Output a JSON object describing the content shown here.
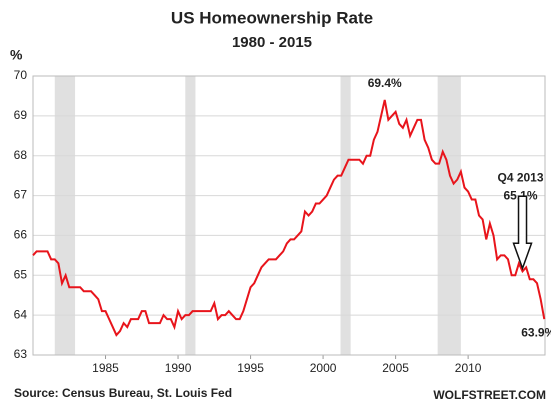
{
  "chart_data": {
    "type": "line",
    "title": "US Homeownership Rate",
    "subtitle": "1980 - 2015",
    "y_label": "%",
    "source": "Source: Census Bureau, St. Louis Fed",
    "credit": "WOLFSTREET.COM",
    "xlim": [
      1980,
      2015.3
    ],
    "xticks": [
      1985,
      1990,
      1995,
      2000,
      2005,
      2010
    ],
    "ylim": [
      63,
      70
    ],
    "yticks": [
      63,
      64,
      65,
      66,
      67,
      68,
      69,
      70
    ],
    "grid": true,
    "shaded_periods": [
      [
        1981.5,
        1982.9
      ],
      [
        1990.5,
        1991.2
      ],
      [
        2001.2,
        2001.9
      ],
      [
        2007.9,
        2009.5
      ]
    ],
    "x": [
      1980,
      1980.25,
      1980.5,
      1980.75,
      1981,
      1981.25,
      1981.5,
      1981.75,
      1982,
      1982.25,
      1982.5,
      1982.75,
      1983,
      1983.25,
      1983.5,
      1983.75,
      1984,
      1984.25,
      1984.5,
      1984.75,
      1985,
      1985.25,
      1985.5,
      1985.75,
      1986,
      1986.25,
      1986.5,
      1986.75,
      1987,
      1987.25,
      1987.5,
      1987.75,
      1988,
      1988.25,
      1988.5,
      1988.75,
      1989,
      1989.25,
      1989.5,
      1989.75,
      1990,
      1990.25,
      1990.5,
      1990.75,
      1991,
      1991.25,
      1991.5,
      1991.75,
      1992,
      1992.25,
      1992.5,
      1992.75,
      1993,
      1993.25,
      1993.5,
      1993.75,
      1994,
      1994.25,
      1994.5,
      1994.75,
      1995,
      1995.25,
      1995.5,
      1995.75,
      1996,
      1996.25,
      1996.5,
      1996.75,
      1997,
      1997.25,
      1997.5,
      1997.75,
      1998,
      1998.25,
      1998.5,
      1998.75,
      1999,
      1999.25,
      1999.5,
      1999.75,
      2000,
      2000.25,
      2000.5,
      2000.75,
      2001,
      2001.25,
      2001.5,
      2001.75,
      2002,
      2002.25,
      2002.5,
      2002.75,
      2003,
      2003.25,
      2003.5,
      2003.75,
      2004,
      2004.25,
      2004.5,
      2004.75,
      2005,
      2005.25,
      2005.5,
      2005.75,
      2006,
      2006.25,
      2006.5,
      2006.75,
      2007,
      2007.25,
      2007.5,
      2007.75,
      2008,
      2008.25,
      2008.5,
      2008.75,
      2009,
      2009.25,
      2009.5,
      2009.75,
      2010,
      2010.25,
      2010.5,
      2010.75,
      2011,
      2011.25,
      2011.5,
      2011.75,
      2012,
      2012.25,
      2012.5,
      2012.75,
      2013,
      2013.25,
      2013.5,
      2013.75,
      2014,
      2014.25,
      2014.5,
      2014.75,
      2015,
      2015.25
    ],
    "series": [
      {
        "name": "Homeownership rate",
        "color": "#e8141b",
        "values": [
          65.5,
          65.6,
          65.6,
          65.6,
          65.6,
          65.4,
          65.4,
          65.3,
          64.8,
          65.0,
          64.7,
          64.7,
          64.7,
          64.7,
          64.6,
          64.6,
          64.6,
          64.5,
          64.4,
          64.1,
          64.1,
          63.9,
          63.7,
          63.5,
          63.6,
          63.8,
          63.7,
          63.9,
          63.9,
          63.9,
          64.1,
          64.1,
          63.8,
          63.8,
          63.8,
          63.8,
          64.0,
          63.9,
          63.9,
          63.7,
          64.1,
          63.9,
          64.0,
          64.0,
          64.1,
          64.1,
          64.1,
          64.1,
          64.1,
          64.1,
          64.3,
          63.9,
          64.0,
          64.0,
          64.1,
          64.0,
          63.9,
          63.9,
          64.1,
          64.4,
          64.7,
          64.8,
          65.0,
          65.2,
          65.3,
          65.4,
          65.4,
          65.4,
          65.5,
          65.6,
          65.8,
          65.9,
          65.9,
          66.0,
          66.1,
          66.6,
          66.5,
          66.6,
          66.8,
          66.8,
          66.9,
          67.0,
          67.2,
          67.4,
          67.5,
          67.5,
          67.7,
          67.9,
          67.9,
          67.9,
          67.9,
          67.8,
          68.0,
          68.0,
          68.4,
          68.6,
          69.0,
          69.4,
          68.9,
          69.0,
          69.1,
          68.8,
          68.7,
          68.9,
          68.5,
          68.7,
          68.9,
          68.9,
          68.4,
          68.2,
          67.9,
          67.8,
          67.8,
          68.1,
          67.9,
          67.5,
          67.3,
          67.4,
          67.6,
          67.2,
          67.1,
          66.9,
          66.9,
          66.5,
          66.4,
          65.9,
          66.3,
          66.0,
          65.4,
          65.5,
          65.5,
          65.4,
          65.0,
          65.0,
          65.3,
          65.1,
          65.2,
          64.9,
          64.9,
          64.8,
          64.4,
          63.9
        ]
      }
    ],
    "annotations": [
      {
        "text": "69.4%",
        "x": 2004.25,
        "y": 69.4
      },
      {
        "text": "Q4 2013",
        "x": 2013.75,
        "y": 65.1
      },
      {
        "text": "65.1%",
        "x": 2013.75,
        "y": 65.1
      },
      {
        "text": "63.9%",
        "x": 2015.25,
        "y": 63.9
      }
    ]
  }
}
